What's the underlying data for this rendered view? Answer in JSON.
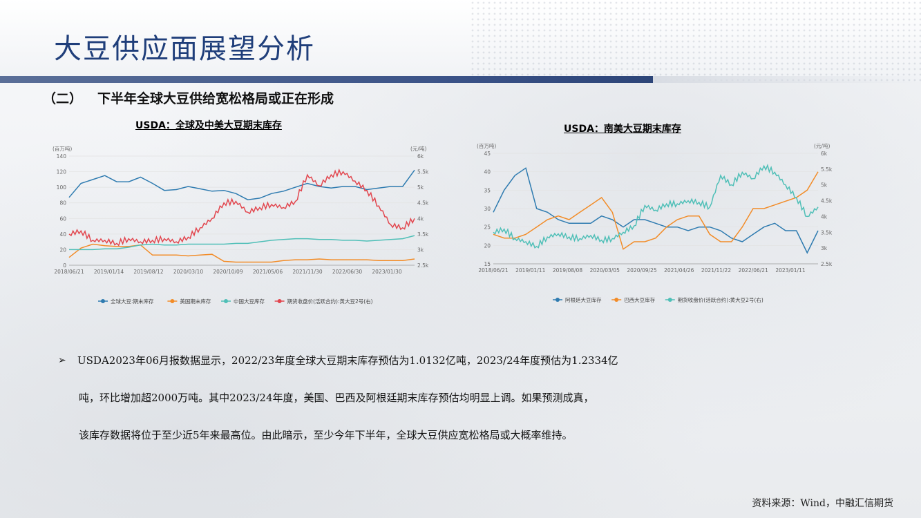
{
  "page": {
    "title": "大豆供应面展望分析",
    "subtitle_prefix": "（二）",
    "subtitle": "下半年全球大豆供给宽松格局或正在形成",
    "source": "资料来源：Wind，中融汇信期货"
  },
  "bullet": {
    "marker": "➢",
    "line1": "USDA2023年06月报数据显示，2022/23年度全球大豆期末库存预估为1.0132亿吨，2023/24年度预估为1.2334亿",
    "line2": "吨，环比增加超2000万吨。其中2023/24年度，美国、巴西及阿根廷期末库存预估均明显上调。如果预测成真，",
    "line3": "该库存数据将位于至少近5年来最高位。由此暗示，至少今年下半年，全球大豆供应宽松格局或大概率维持。"
  },
  "chart_data": [
    {
      "type": "line",
      "title": "USDA：全球及中美大豆期末库存",
      "y_left_unit": "(百万吨)",
      "y_right_unit": "(元/吨)",
      "ylim_left": [
        0,
        140
      ],
      "ylim_right": [
        2500,
        6000
      ],
      "y_left_ticks": [
        "0",
        "20",
        "40",
        "60",
        "80",
        "100",
        "120",
        "140"
      ],
      "y_right_ticks": [
        "2.5k",
        "3k",
        "3.5k",
        "4k",
        "4.5k",
        "5k",
        "5.5k",
        "6k"
      ],
      "x_ticks": [
        "2018/06/21",
        "2019/01/14",
        "2019/08/12",
        "2020/03/10",
        "2020/10/09",
        "2021/05/06",
        "2021/11/30",
        "2022/06/30",
        "2023/01/30"
      ],
      "legend_position": "bottom",
      "grid": true,
      "series": [
        {
          "name": "全球大豆:期末库存",
          "axis": "left",
          "color": "#2e7bb0",
          "values": [
            87,
            105,
            110,
            115,
            107,
            107,
            113,
            105,
            96,
            97,
            101,
            98,
            95,
            96,
            92,
            84,
            86,
            92,
            95,
            100,
            105,
            101,
            99,
            101,
            101,
            97,
            99,
            101,
            101,
            122
          ]
        },
        {
          "name": "美国期末库存",
          "axis": "left",
          "color": "#f28c28",
          "values": [
            10,
            22,
            27,
            25,
            24,
            24,
            26,
            13,
            13,
            13,
            12,
            13,
            14,
            5,
            4,
            4,
            4,
            4,
            6,
            7,
            7,
            8,
            7,
            7,
            7,
            7,
            6,
            6,
            6,
            8
          ]
        },
        {
          "name": "中国大豆库存",
          "axis": "left",
          "color": "#4fbfb7",
          "values": [
            20,
            20,
            20,
            21,
            21,
            23,
            26,
            27,
            26,
            26,
            27,
            27,
            27,
            27,
            28,
            28,
            30,
            32,
            33,
            34,
            34,
            33,
            33,
            32,
            32,
            31,
            32,
            33,
            34,
            38
          ]
        },
        {
          "name": "期货收盘价(活跃合约):黄大豆2号(右)",
          "axis": "right",
          "color": "#e2474f",
          "values": [
            3500,
            3600,
            3300,
            3300,
            3200,
            3350,
            3250,
            3300,
            3350,
            3250,
            3400,
            3700,
            4000,
            4500,
            4550,
            4200,
            4350,
            4450,
            4350,
            4550,
            5400,
            5050,
            5400,
            5500,
            5200,
            4900,
            4400,
            3800,
            3700,
            4000
          ]
        }
      ]
    },
    {
      "type": "line",
      "title": "USDA：南美大豆期末库存",
      "y_left_unit": "(百万吨)",
      "y_right_unit": "(元/吨)",
      "ylim_left": [
        15,
        45
      ],
      "ylim_right": [
        2500,
        6000
      ],
      "y_left_ticks": [
        "15",
        "20",
        "25",
        "30",
        "35",
        "40",
        "45"
      ],
      "y_right_ticks": [
        "2.5k",
        "3k",
        "3.5k",
        "4k",
        "4.5k",
        "5k",
        "5.5k",
        "6k"
      ],
      "x_ticks": [
        "2018/06/21",
        "2019/01/11",
        "2019/08/08",
        "2020/03/05",
        "2020/09/25",
        "2021/04/26",
        "2021/11/22",
        "2022/06/21",
        "2023/01/11"
      ],
      "legend_position": "bottom",
      "grid": true,
      "series": [
        {
          "name": "阿根廷大豆库存",
          "axis": "left",
          "color": "#2e7bb0",
          "values": [
            29,
            35,
            39,
            41,
            30,
            29,
            27,
            26,
            26,
            26,
            28,
            27,
            25,
            27,
            27,
            26,
            25,
            25,
            24,
            25,
            25,
            24,
            22,
            21,
            23,
            25,
            26,
            24,
            24,
            18,
            24
          ]
        },
        {
          "name": "巴西大豆库存",
          "axis": "left",
          "color": "#f28c28",
          "values": [
            23,
            22,
            22,
            23,
            25,
            27,
            28,
            27,
            29,
            31,
            33,
            29,
            19,
            21,
            21,
            22,
            25,
            27,
            28,
            28,
            23,
            21,
            21,
            25,
            30,
            30,
            31,
            32,
            33,
            35,
            40
          ]
        },
        {
          "name": "期货收盘价(活跃合约):黄大豆2号(右)",
          "axis": "right",
          "color": "#4fbfb7",
          "values": [
            3500,
            3600,
            3300,
            3200,
            3050,
            3350,
            3450,
            3350,
            3300,
            3400,
            3250,
            3300,
            3500,
            3700,
            4350,
            4200,
            4400,
            4400,
            4500,
            4450,
            4300,
            5300,
            5000,
            5400,
            5200,
            5600,
            5400,
            5000,
            4600,
            4000,
            4300
          ]
        }
      ]
    }
  ]
}
